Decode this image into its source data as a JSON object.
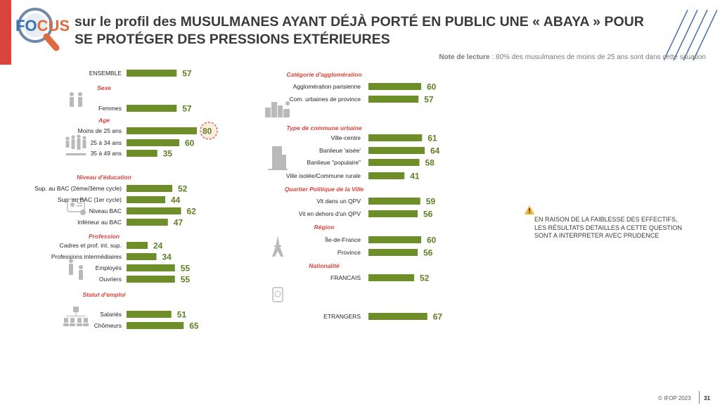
{
  "title": "sur le profil des MUSULMANES AYANT DÉJÀ PORTÉ EN PUBLIC UNE « ABAYA » POUR SE PROTÉGER DES PRESSIONS EXTÉRIEURES",
  "logo_text": "FOCUS",
  "note": {
    "label": "Note de lecture",
    "text": " : 80% des musulmanes de moins de 25 ans sont dans cette situation"
  },
  "warning": "EN RAISON DE LA FAIBLESSE DES EFFECTIFS, LES RÉSULTATS DETAILLES A CETTE  QUESTION SONT A INTERPRETER AVEC  PRUDENCE",
  "footer": {
    "copyright": "© IFOP 2023",
    "page": "31"
  },
  "colors": {
    "bar": "#6e8e2a",
    "value": "#5f7f26",
    "section": "#d9453d",
    "highlight_circle": "#d9453d",
    "highlight_fill": "#fbeede"
  },
  "chart_data": {
    "type": "bar",
    "orientation": "horizontal",
    "scale": [
      0,
      100
    ],
    "highlight": "Moins de 25 ans",
    "groups": [
      {
        "section": "",
        "items": [
          {
            "label": "ENSEMBLE",
            "value": 57
          }
        ]
      },
      {
        "section": "Sexe",
        "icon": "people-icon",
        "items": [
          {
            "label": "Femmes",
            "value": 57
          }
        ]
      },
      {
        "section": "Age",
        "icon": "age-group-icon",
        "items": [
          {
            "label": "Moins de 25 ans",
            "value": 80
          },
          {
            "label": "25 à 34 ans",
            "value": 60
          },
          {
            "label": "35 à 49 ans",
            "value": 35
          }
        ]
      },
      {
        "section": "Niveau d'éducation",
        "icon": "diploma-icon",
        "items": [
          {
            "label": "Sup. au BAC (2ème/3ème cycle)",
            "value": 52
          },
          {
            "label": "Sup. au BAC (1er cycle)",
            "value": 44
          },
          {
            "label": "Niveau BAC",
            "value": 62
          },
          {
            "label": "Inférieur au BAC",
            "value": 47
          }
        ]
      },
      {
        "section": "Profession",
        "icon": "workers-icon",
        "items": [
          {
            "label": "Cadres et prof. int. sup.",
            "value": 24
          },
          {
            "label": "Professions intermédiaires",
            "value": 34
          },
          {
            "label": "Employés",
            "value": 55
          },
          {
            "label": "Ouvriers",
            "value": 55
          }
        ]
      },
      {
        "section": "Statut d'emploi",
        "icon": "org-chart-icon",
        "items": [
          {
            "label": "Salariés",
            "value": 51
          },
          {
            "label": "Chômeurs",
            "value": 65
          }
        ]
      },
      {
        "section": "Catégorie d'agglomération",
        "icon": "city-icon",
        "items": [
          {
            "label": "Agglomération parisienne",
            "value": 60
          },
          {
            "label": "Com. urbaines de province",
            "value": 57
          }
        ]
      },
      {
        "section": "Type de commune urbaine",
        "icon": "building-icon",
        "items": [
          {
            "label": "Ville-centre",
            "value": 61
          },
          {
            "label": "Banlieue 'aisée'",
            "value": 64
          },
          {
            "label": "Banlieue \"populaire\"",
            "value": 58
          },
          {
            "label": "Ville isolée/Commune rurale",
            "value": 41
          }
        ]
      },
      {
        "section": "Quartier Politique de la Ville",
        "items": [
          {
            "label": "Vit dans un QPV",
            "value": 59
          },
          {
            "label": "Vit en dehors d'un QPV",
            "value": 56
          }
        ]
      },
      {
        "section": "Région",
        "icon": "eiffel-tower-icon",
        "items": [
          {
            "label": "Île-de-France",
            "value": 60
          },
          {
            "label": "Province",
            "value": 56
          }
        ]
      },
      {
        "section": "Nationalité",
        "icon": "passport-icon",
        "items": [
          {
            "label": "FRANCAIS",
            "value": 52
          },
          {
            "label": "ETRANGERS",
            "value": 67
          }
        ]
      }
    ]
  }
}
